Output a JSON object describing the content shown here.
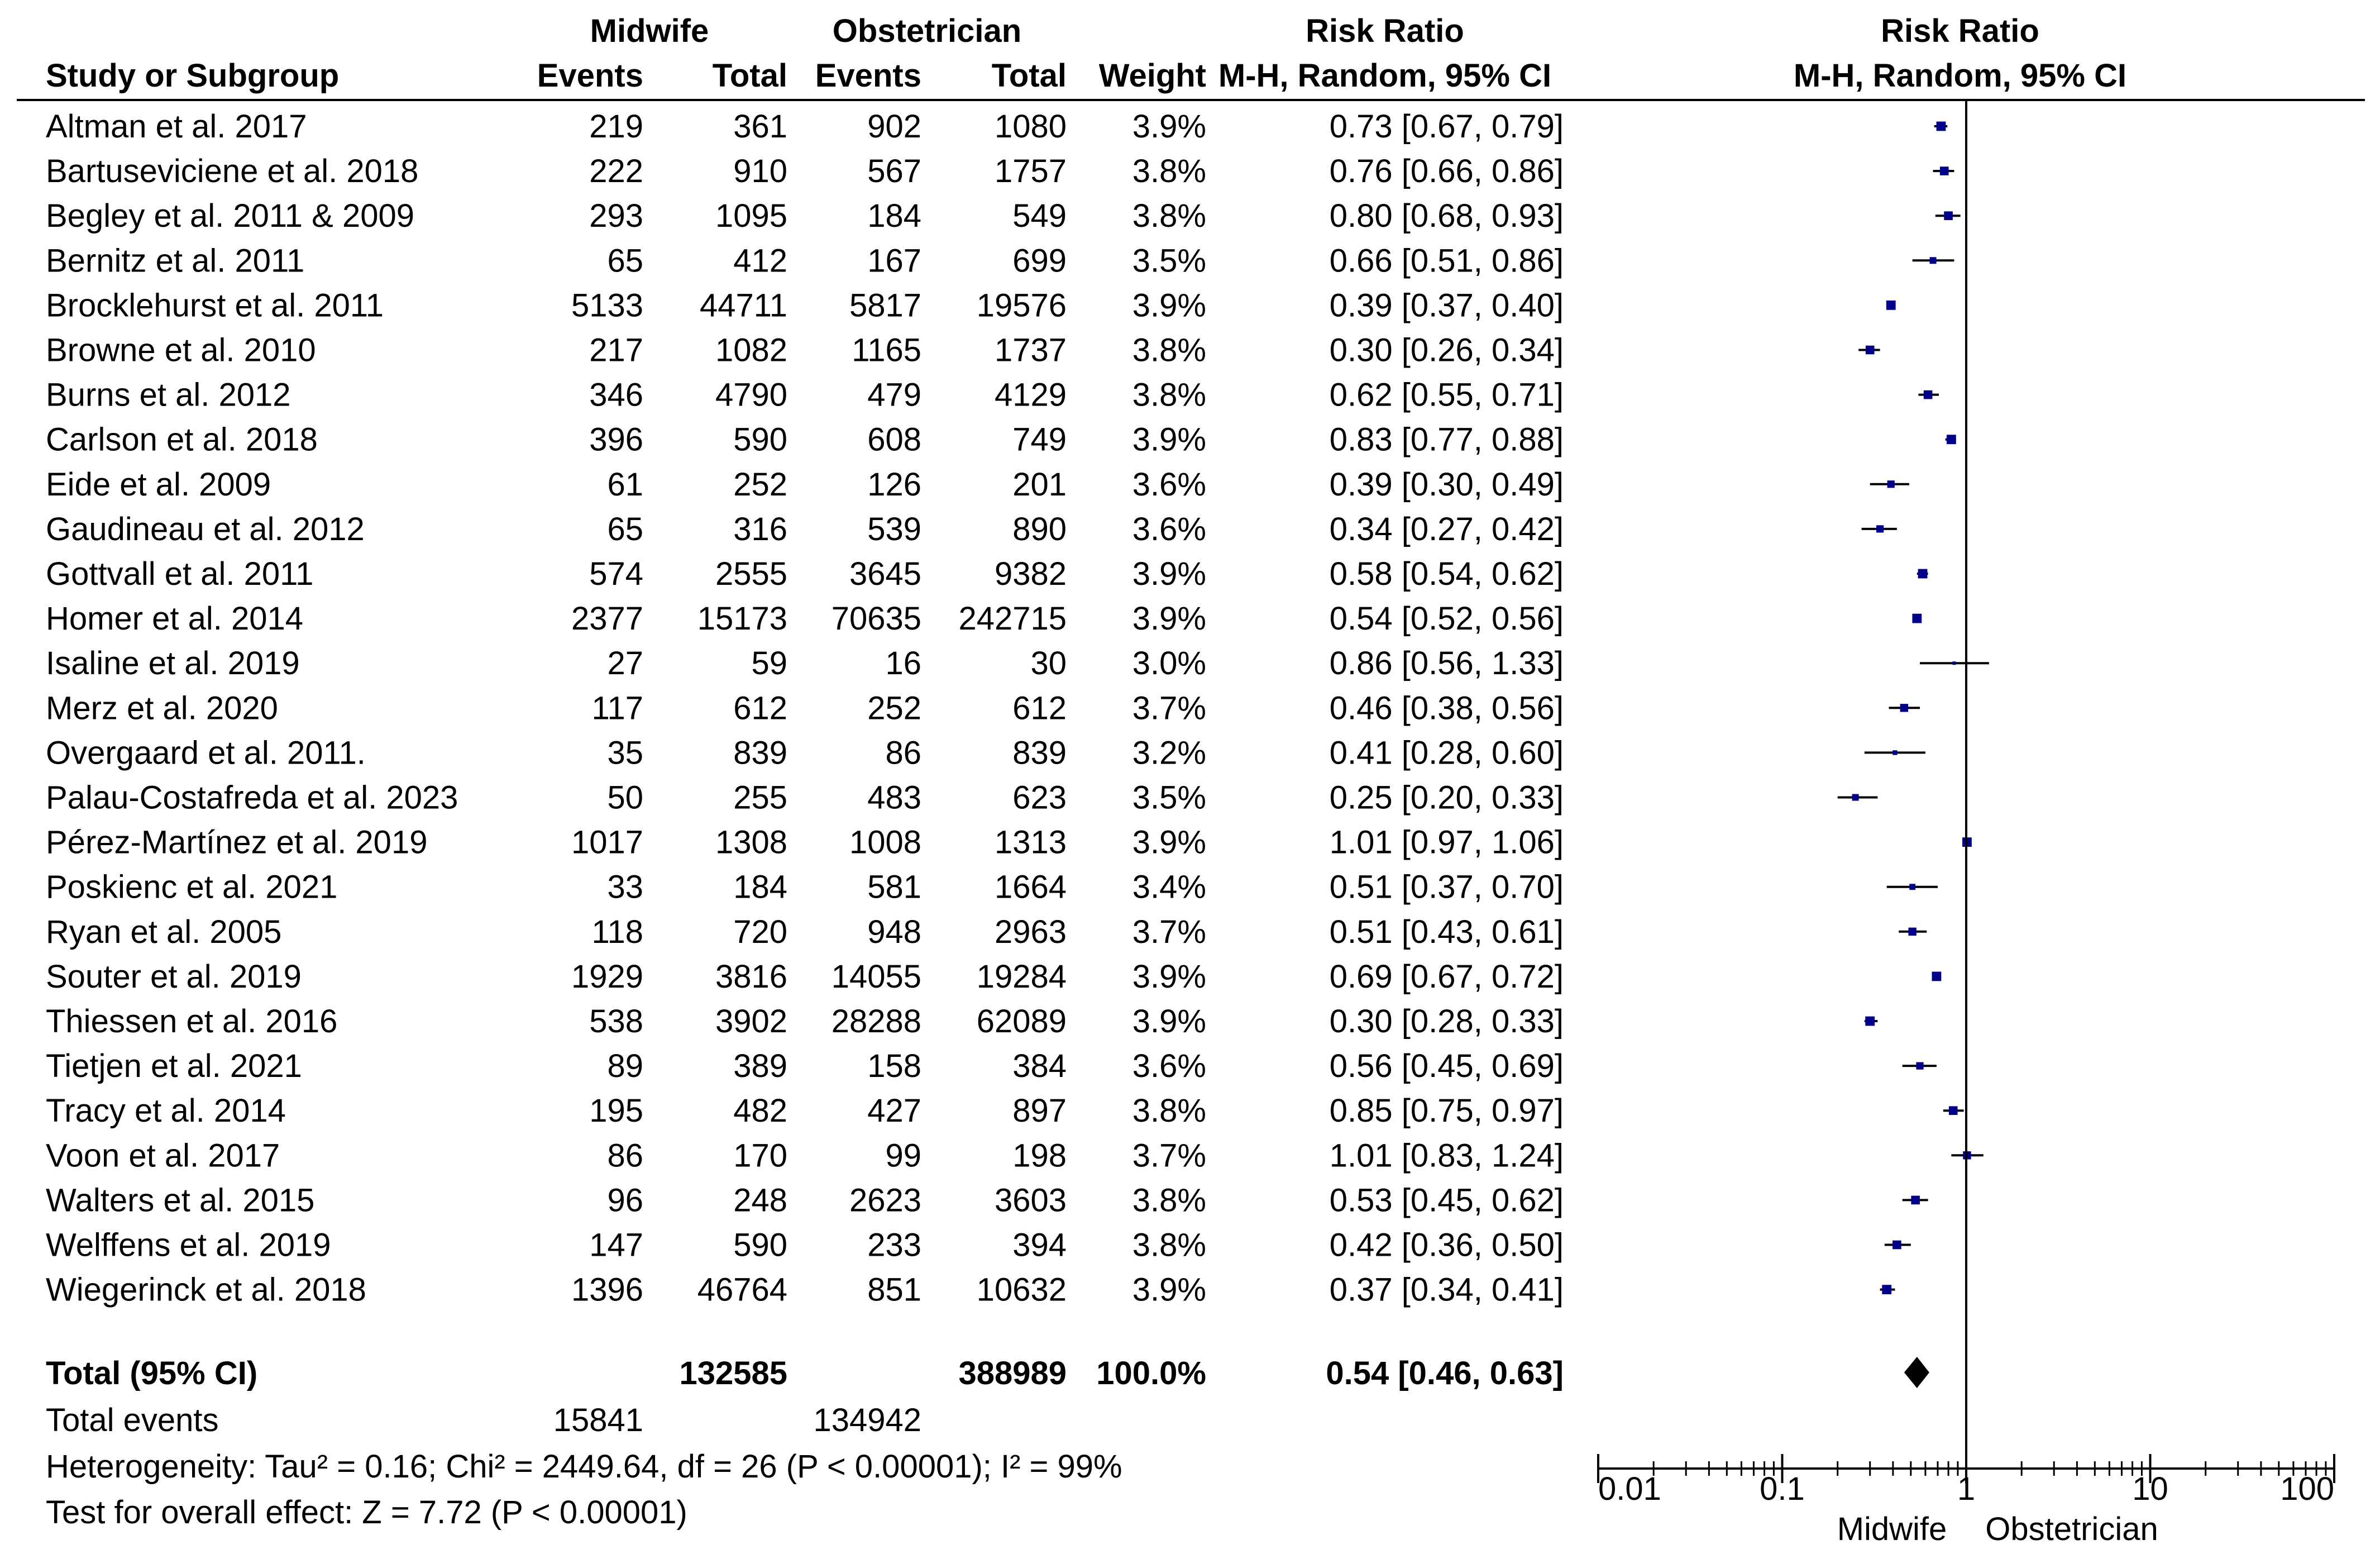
{
  "header": {
    "group1": "Midwife",
    "group2": "Obstetrician",
    "rr_title": "Risk Ratio",
    "rr_method": "M-H, Random, 95% CI",
    "plot_title": "Risk Ratio",
    "plot_method": "M-H, Random, 95% CI",
    "col_study": "Study or Subgroup",
    "col_events1": "Events",
    "col_total1": "Total",
    "col_events2": "Events",
    "col_total2": "Total",
    "col_weight": "Weight"
  },
  "chart_data": {
    "type": "forest",
    "scale": "log",
    "xlim": [
      0.01,
      100
    ],
    "ticks": [
      0.01,
      0.1,
      1,
      10,
      100
    ],
    "tick_labels": [
      "0.01",
      "0.1",
      "1",
      "10",
      "100"
    ],
    "favours_left": "Midwife",
    "favours_right": "Obstetrician",
    "marker_color": "#00008b",
    "studies": [
      {
        "name": "Altman et al. 2017",
        "e1": "219",
        "t1": "361",
        "e2": "902",
        "t2": "1080",
        "weight": "3.9%",
        "ci_text": "0.73 [0.67, 0.79]",
        "rr": 0.73,
        "lo": 0.67,
        "hi": 0.79
      },
      {
        "name": "Bartuseviciene et al. 2018",
        "e1": "222",
        "t1": "910",
        "e2": "567",
        "t2": "1757",
        "weight": "3.8%",
        "ci_text": "0.76 [0.66, 0.86]",
        "rr": 0.76,
        "lo": 0.66,
        "hi": 0.86
      },
      {
        "name": "Begley et al. 2011 & 2009",
        "e1": "293",
        "t1": "1095",
        "e2": "184",
        "t2": "549",
        "weight": "3.8%",
        "ci_text": "0.80 [0.68, 0.93]",
        "rr": 0.8,
        "lo": 0.68,
        "hi": 0.93
      },
      {
        "name": "Bernitz et al. 2011",
        "e1": "65",
        "t1": "412",
        "e2": "167",
        "t2": "699",
        "weight": "3.5%",
        "ci_text": "0.66 [0.51, 0.86]",
        "rr": 0.66,
        "lo": 0.51,
        "hi": 0.86
      },
      {
        "name": "Brocklehurst et al. 2011",
        "e1": "5133",
        "t1": "44711",
        "e2": "5817",
        "t2": "19576",
        "weight": "3.9%",
        "ci_text": "0.39 [0.37, 0.40]",
        "rr": 0.39,
        "lo": 0.37,
        "hi": 0.4
      },
      {
        "name": "Browne  et al. 2010",
        "e1": "217",
        "t1": "1082",
        "e2": "1165",
        "t2": "1737",
        "weight": "3.8%",
        "ci_text": "0.30 [0.26, 0.34]",
        "rr": 0.3,
        "lo": 0.26,
        "hi": 0.34
      },
      {
        "name": "Burns et al. 2012",
        "e1": "346",
        "t1": "4790",
        "e2": "479",
        "t2": "4129",
        "weight": "3.8%",
        "ci_text": "0.62 [0.55, 0.71]",
        "rr": 0.62,
        "lo": 0.55,
        "hi": 0.71
      },
      {
        "name": "Carlson et al. 2018",
        "e1": "396",
        "t1": "590",
        "e2": "608",
        "t2": "749",
        "weight": "3.9%",
        "ci_text": "0.83 [0.77, 0.88]",
        "rr": 0.83,
        "lo": 0.77,
        "hi": 0.88
      },
      {
        "name": "Eide et al. 2009",
        "e1": "61",
        "t1": "252",
        "e2": "126",
        "t2": "201",
        "weight": "3.6%",
        "ci_text": "0.39 [0.30, 0.49]",
        "rr": 0.39,
        "lo": 0.3,
        "hi": 0.49
      },
      {
        "name": "Gaudineau  et al. 2012",
        "e1": "65",
        "t1": "316",
        "e2": "539",
        "t2": "890",
        "weight": "3.6%",
        "ci_text": "0.34 [0.27, 0.42]",
        "rr": 0.34,
        "lo": 0.27,
        "hi": 0.42
      },
      {
        "name": "Gottvall  et al. 2011",
        "e1": "574",
        "t1": "2555",
        "e2": "3645",
        "t2": "9382",
        "weight": "3.9%",
        "ci_text": "0.58 [0.54, 0.62]",
        "rr": 0.58,
        "lo": 0.54,
        "hi": 0.62
      },
      {
        "name": "Homer et al. 2014",
        "e1": "2377",
        "t1": "15173",
        "e2": "70635",
        "t2": "242715",
        "weight": "3.9%",
        "ci_text": "0.54 [0.52, 0.56]",
        "rr": 0.54,
        "lo": 0.52,
        "hi": 0.56
      },
      {
        "name": "Isaline et al. 2019",
        "e1": "27",
        "t1": "59",
        "e2": "16",
        "t2": "30",
        "weight": "3.0%",
        "ci_text": "0.86 [0.56, 1.33]",
        "rr": 0.86,
        "lo": 0.56,
        "hi": 1.33
      },
      {
        "name": "Merz et al. 2020",
        "e1": "117",
        "t1": "612",
        "e2": "252",
        "t2": "612",
        "weight": "3.7%",
        "ci_text": "0.46 [0.38, 0.56]",
        "rr": 0.46,
        "lo": 0.38,
        "hi": 0.56
      },
      {
        "name": "Overgaard et al. 2011.",
        "e1": "35",
        "t1": "839",
        "e2": "86",
        "t2": "839",
        "weight": "3.2%",
        "ci_text": "0.41 [0.28, 0.60]",
        "rr": 0.41,
        "lo": 0.28,
        "hi": 0.6
      },
      {
        "name": "Palau-Costafreda et al. 2023",
        "e1": "50",
        "t1": "255",
        "e2": "483",
        "t2": "623",
        "weight": "3.5%",
        "ci_text": "0.25 [0.20, 0.33]",
        "rr": 0.25,
        "lo": 0.2,
        "hi": 0.33
      },
      {
        "name": "Pérez-Martínez et al. 2019",
        "e1": "1017",
        "t1": "1308",
        "e2": "1008",
        "t2": "1313",
        "weight": "3.9%",
        "ci_text": "1.01 [0.97, 1.06]",
        "rr": 1.01,
        "lo": 0.97,
        "hi": 1.06
      },
      {
        "name": "Poskienc et al. 2021",
        "e1": "33",
        "t1": "184",
        "e2": "581",
        "t2": "1664",
        "weight": "3.4%",
        "ci_text": "0.51 [0.37, 0.70]",
        "rr": 0.51,
        "lo": 0.37,
        "hi": 0.7
      },
      {
        "name": "Ryan et al. 2005",
        "e1": "118",
        "t1": "720",
        "e2": "948",
        "t2": "2963",
        "weight": "3.7%",
        "ci_text": "0.51 [0.43, 0.61]",
        "rr": 0.51,
        "lo": 0.43,
        "hi": 0.61
      },
      {
        "name": "Souter et al. 2019",
        "e1": "1929",
        "t1": "3816",
        "e2": "14055",
        "t2": "19284",
        "weight": "3.9%",
        "ci_text": "0.69 [0.67, 0.72]",
        "rr": 0.69,
        "lo": 0.67,
        "hi": 0.72
      },
      {
        "name": "Thiessen et al. 2016",
        "e1": "538",
        "t1": "3902",
        "e2": "28288",
        "t2": "62089",
        "weight": "3.9%",
        "ci_text": "0.30 [0.28, 0.33]",
        "rr": 0.3,
        "lo": 0.28,
        "hi": 0.33
      },
      {
        "name": "Tietjen et al. 2021",
        "e1": "89",
        "t1": "389",
        "e2": "158",
        "t2": "384",
        "weight": "3.6%",
        "ci_text": "0.56 [0.45, 0.69]",
        "rr": 0.56,
        "lo": 0.45,
        "hi": 0.69
      },
      {
        "name": "Tracy et al. 2014",
        "e1": "195",
        "t1": "482",
        "e2": "427",
        "t2": "897",
        "weight": "3.8%",
        "ci_text": "0.85 [0.75, 0.97]",
        "rr": 0.85,
        "lo": 0.75,
        "hi": 0.97
      },
      {
        "name": "Voon et al. 2017",
        "e1": "86",
        "t1": "170",
        "e2": "99",
        "t2": "198",
        "weight": "3.7%",
        "ci_text": "1.01 [0.83, 1.24]",
        "rr": 1.01,
        "lo": 0.83,
        "hi": 1.24
      },
      {
        "name": "Walters et al. 2015",
        "e1": "96",
        "t1": "248",
        "e2": "2623",
        "t2": "3603",
        "weight": "3.8%",
        "ci_text": "0.53 [0.45, 0.62]",
        "rr": 0.53,
        "lo": 0.45,
        "hi": 0.62
      },
      {
        "name": "Welffens et al. 2019",
        "e1": "147",
        "t1": "590",
        "e2": "233",
        "t2": "394",
        "weight": "3.8%",
        "ci_text": "0.42 [0.36, 0.50]",
        "rr": 0.42,
        "lo": 0.36,
        "hi": 0.5
      },
      {
        "name": "Wiegerinck et al. 2018",
        "e1": "1396",
        "t1": "46764",
        "e2": "851",
        "t2": "10632",
        "weight": "3.9%",
        "ci_text": "0.37 [0.34, 0.41]",
        "rr": 0.37,
        "lo": 0.34,
        "hi": 0.41
      }
    ],
    "total": {
      "label": "Total (95% CI)",
      "t1": "132585",
      "t2": "388989",
      "weight": "100.0%",
      "ci_text": "0.54 [0.46, 0.63]",
      "rr": 0.54,
      "lo": 0.46,
      "hi": 0.63
    },
    "total_events": {
      "label": "Total events",
      "e1": "15841",
      "e2": "134942"
    },
    "heterogeneity": "Heterogeneity: Tau² = 0.16; Chi² = 2449.64, df = 26 (P < 0.00001); I² = 99%",
    "overall_effect": "Test for overall effect: Z = 7.72 (P < 0.00001)"
  }
}
